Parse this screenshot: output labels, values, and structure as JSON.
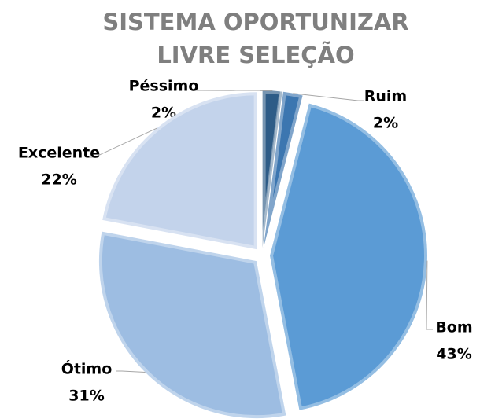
{
  "chart_data": {
    "type": "pie",
    "title": [
      "SISTEMA OPORTUNIZAR",
      "LIVRE SELEÇÃO"
    ],
    "categories": [
      "Péssimo",
      "Ruim",
      "Bom",
      "Ótimo",
      "Excelente"
    ],
    "values": [
      2,
      2,
      43,
      31,
      22
    ],
    "value_labels": [
      "2%",
      "2%",
      "43%",
      "31%",
      "22%"
    ],
    "colors": [
      "#2e5c87",
      "#3c76b0",
      "#5b9bd5",
      "#9dbde2",
      "#c3d3eb"
    ]
  }
}
